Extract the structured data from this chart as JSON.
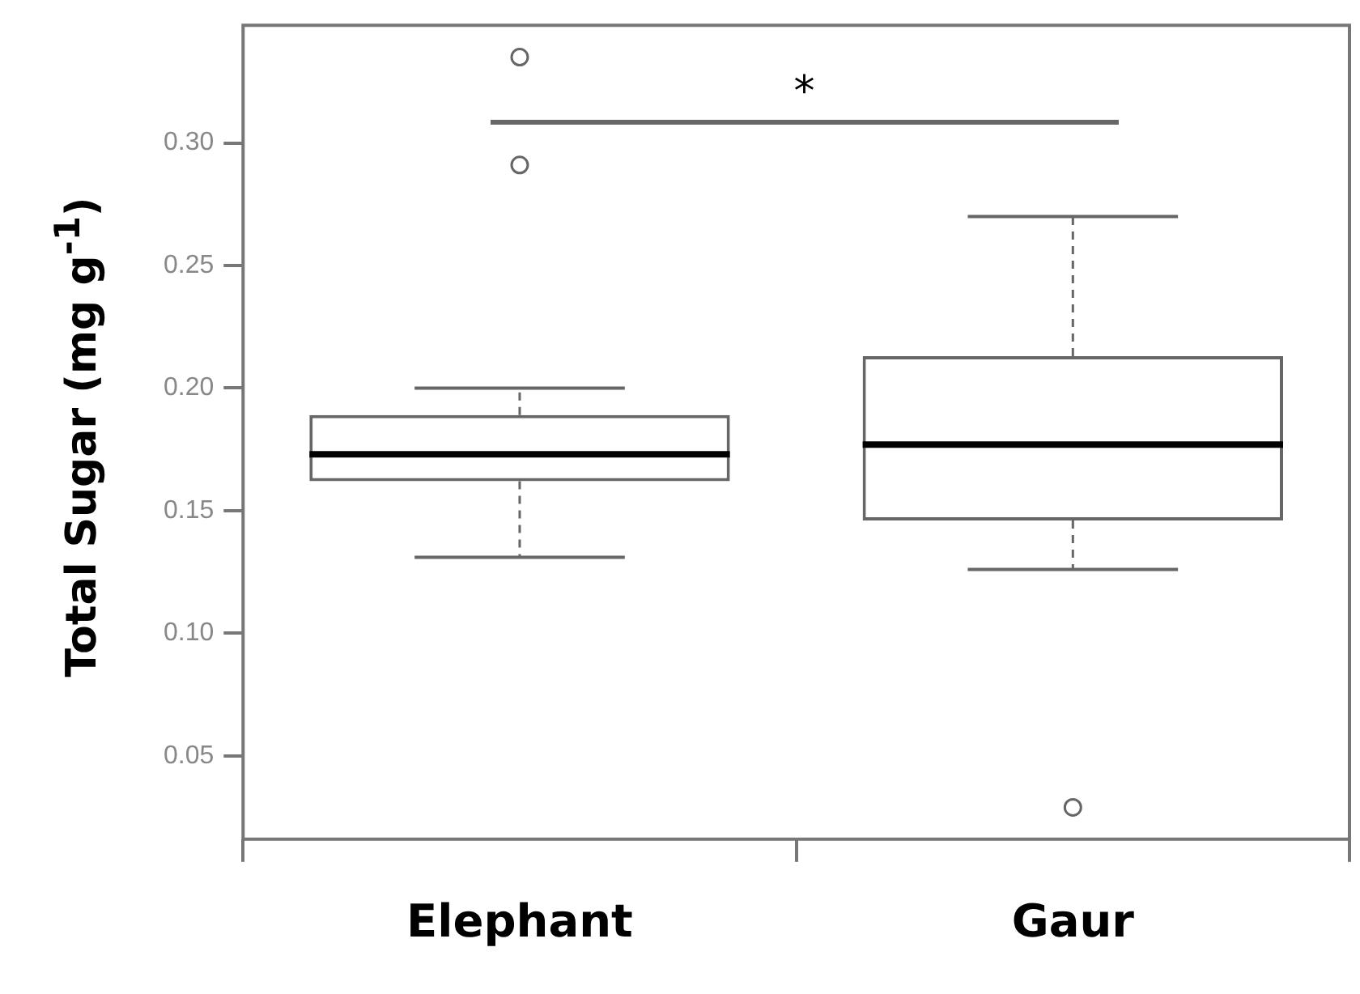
{
  "chart_data": {
    "type": "box",
    "ylabel": "Total Sugar (mg g$^{-1}$)",
    "categories": [
      "Elephant",
      "Gaur"
    ],
    "boxes": [
      {
        "low": 0.131,
        "q1": 0.162,
        "median": 0.173,
        "q3": 0.189,
        "high": 0.2,
        "outliers": [
          0.291,
          0.335
        ]
      },
      {
        "low": 0.126,
        "q1": 0.146,
        "median": 0.177,
        "q3": 0.213,
        "high": 0.27,
        "outliers": [
          0.029
        ]
      }
    ],
    "ylim": [
      0.016,
      0.348
    ],
    "yticks": [
      0.05,
      {
        "value": 0.1,
        "label": "0.10"
      },
      0.15,
      {
        "value": 0.2,
        "label": "0.20"
      },
      0.25,
      {
        "value": 0.3,
        "label": "0.30"
      }
    ],
    "annotations": [
      "*"
    ]
  }
}
